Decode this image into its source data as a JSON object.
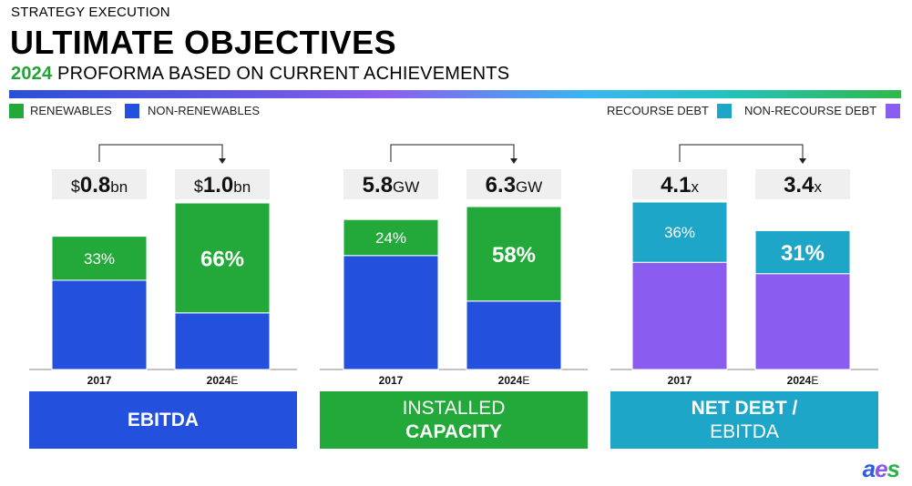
{
  "header": {
    "kicker": "STRATEGY EXECUTION",
    "title": "ULTIMATE OBJECTIVES",
    "subtitle_year": "2024",
    "subtitle_rest": " PROFORMA BASED ON CURRENT ACHIEVEMENTS"
  },
  "legend_left": [
    {
      "label": "RENEWABLES",
      "color": "#22a93a"
    },
    {
      "label": "NON-RENEWABLES",
      "color": "#2450de"
    }
  ],
  "legend_right": [
    {
      "label": "RECOURSE DEBT",
      "color": "#1ea6c8"
    },
    {
      "label": "NON-RECOURSE DEBT",
      "color": "#8b5cf0"
    }
  ],
  "colors": {
    "renewables": "#22a93a",
    "non_renewables": "#2450de",
    "recourse": "#1ea6c8",
    "non_recourse": "#8b5cf0",
    "value_box": "#efefef",
    "ebitda_band": "#2450de",
    "capacity_band": "#22a93a",
    "netdebt_band": "#1ea6c8"
  },
  "sections": {
    "ebitda": {
      "line1": "EBITDA",
      "line2": ""
    },
    "capacity": {
      "line1": "INSTALLED",
      "line2": "CAPACITY"
    },
    "netdebt": {
      "line1": "NET DEBT /",
      "line2": "EBITDA"
    }
  },
  "logo": {
    "a": "a",
    "e": "e",
    "s": "s"
  },
  "chart_data": [
    {
      "type": "bar",
      "stacked": true,
      "normalized": true,
      "categories": [
        "2017",
        "2024E"
      ],
      "category_parts": [
        [
          "2017",
          ""
        ],
        [
          "2024",
          "E"
        ]
      ],
      "totals": [
        {
          "prefix": "$",
          "value": "0.8",
          "unit": "bn",
          "number": 0.8
        },
        {
          "prefix": "$",
          "value": "1.0",
          "unit": "bn",
          "number": 1.0
        }
      ],
      "series": [
        {
          "name": "NON-RENEWABLES",
          "values": [
            67,
            34
          ],
          "color": "#2450de",
          "labeled": false
        },
        {
          "name": "RENEWABLES",
          "values": [
            33,
            66
          ],
          "color": "#22a93a",
          "labeled": true,
          "labels": [
            "33%",
            "66%"
          ]
        }
      ],
      "bold_labels": [
        false,
        true
      ]
    },
    {
      "type": "bar",
      "stacked": true,
      "normalized": true,
      "categories": [
        "2017",
        "2024E"
      ],
      "category_parts": [
        [
          "2017",
          ""
        ],
        [
          "2024",
          "E"
        ]
      ],
      "totals": [
        {
          "prefix": "",
          "value": "5.8",
          "unit": "GW",
          "number": 5.8
        },
        {
          "prefix": "",
          "value": "6.3",
          "unit": "GW",
          "number": 6.3
        }
      ],
      "series": [
        {
          "name": "NON-RENEWABLES",
          "values": [
            76,
            42
          ],
          "color": "#2450de",
          "labeled": false
        },
        {
          "name": "RENEWABLES",
          "values": [
            24,
            58
          ],
          "color": "#22a93a",
          "labeled": true,
          "labels": [
            "24%",
            "58%"
          ]
        }
      ],
      "bold_labels": [
        false,
        true
      ]
    },
    {
      "type": "bar",
      "stacked": true,
      "normalized": true,
      "categories": [
        "2017",
        "2024E"
      ],
      "category_parts": [
        [
          "2017",
          ""
        ],
        [
          "2024",
          "E"
        ]
      ],
      "totals": [
        {
          "prefix": "",
          "value": "4.1",
          "unit": "x",
          "number": 4.1
        },
        {
          "prefix": "",
          "value": "3.4",
          "unit": "x",
          "number": 3.4
        }
      ],
      "series": [
        {
          "name": "NON-RECOURSE DEBT",
          "values": [
            64,
            69
          ],
          "color": "#8b5cf0",
          "labeled": false
        },
        {
          "name": "RECOURSE DEBT",
          "values": [
            36,
            31
          ],
          "color": "#1ea6c8",
          "labeled": true,
          "labels": [
            "36%",
            "31%"
          ]
        }
      ],
      "bold_labels": [
        false,
        true
      ]
    }
  ]
}
